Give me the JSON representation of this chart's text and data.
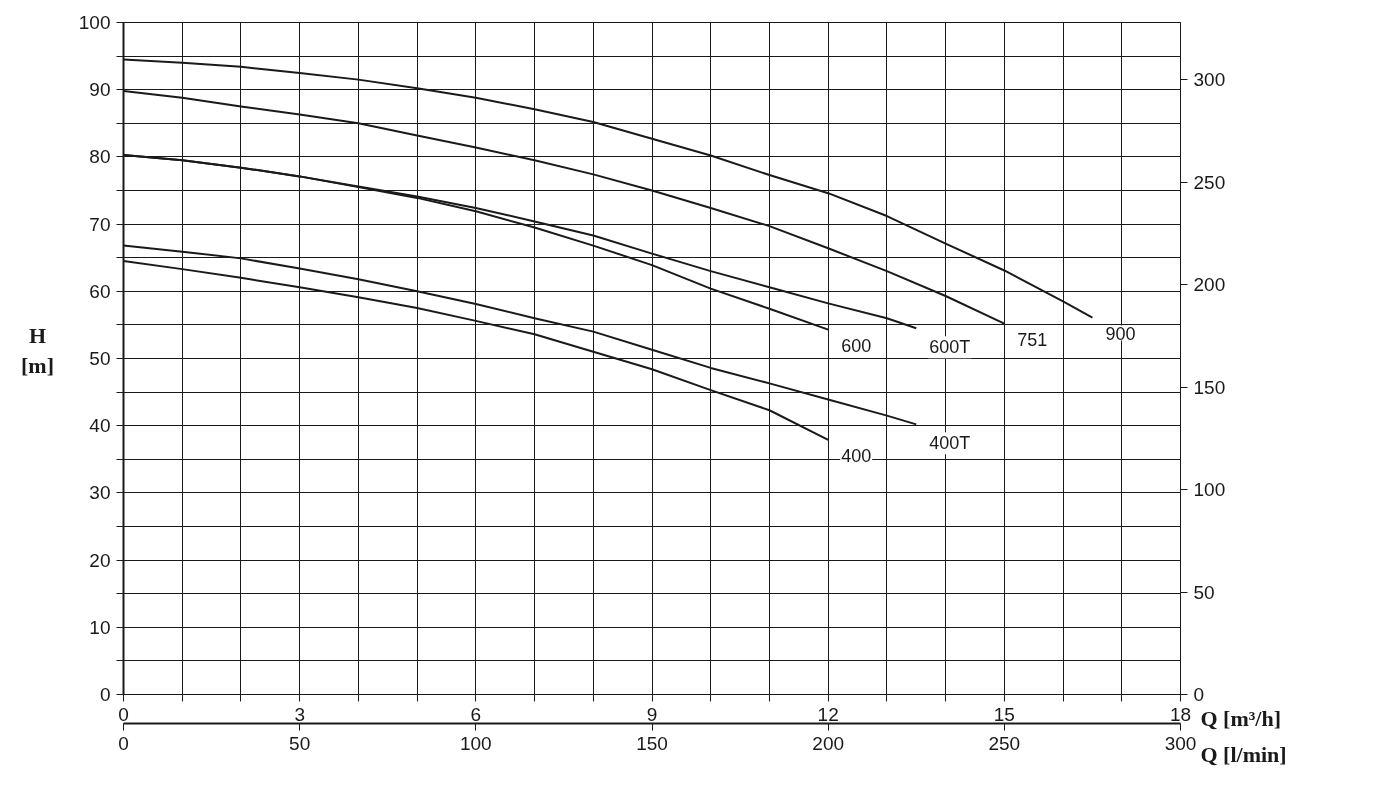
{
  "chart_data": {
    "type": "line",
    "xlabel": "Q [m³/h]",
    "ylabel": "H [m]",
    "x2label": "Q [l/min]",
    "xlim": [
      0,
      18
    ],
    "xticks": [
      0,
      {
        "value": 1,
        "label": null
      },
      {
        "value": 2,
        "label": null
      },
      3,
      {
        "value": 4,
        "label": null
      },
      {
        "value": 5,
        "label": null
      },
      6,
      {
        "value": 7,
        "label": null
      },
      {
        "value": 8,
        "label": null
      },
      9,
      {
        "value": 10,
        "label": null
      },
      {
        "value": 11,
        "label": null
      },
      12,
      {
        "value": 13,
        "label": null
      },
      {
        "value": 14,
        "label": null
      },
      15,
      {
        "value": 16,
        "label": null
      },
      {
        "value": 17,
        "label": null
      },
      18
    ],
    "ylim": [
      0,
      100
    ],
    "yticks": [
      0,
      {
        "value": 5,
        "label": null
      },
      10,
      {
        "value": 15,
        "label": null
      },
      20,
      {
        "value": 25,
        "label": null
      },
      30,
      {
        "value": 35,
        "label": null
      },
      40,
      {
        "value": 45,
        "label": null
      },
      50,
      {
        "value": 55,
        "label": null
      },
      60,
      {
        "value": 65,
        "label": null
      },
      70,
      {
        "value": 75,
        "label": null
      },
      80,
      {
        "value": 85,
        "label": null
      },
      90,
      {
        "value": 95,
        "label": null
      },
      100
    ],
    "x2lim": [
      0,
      300
    ],
    "x2ticks": [
      0,
      50,
      100,
      150,
      200,
      250,
      300
    ],
    "y2lim": [
      0,
      328
    ],
    "y2ticks": [
      0,
      50,
      100,
      150,
      200,
      250,
      300
    ],
    "grid": true,
    "line_style": "solid",
    "series": [
      {
        "name": "900",
        "color": "#1a1a1a",
        "x": [
          0,
          1,
          2,
          3,
          4,
          5,
          6,
          7,
          8,
          9,
          10,
          11,
          12,
          13,
          14,
          15,
          16,
          16.5
        ],
        "values": [
          94.5,
          94.0,
          93.4,
          92.5,
          91.5,
          90.2,
          88.8,
          87.1,
          85.2,
          82.7,
          80.2,
          77.3,
          74.6,
          71.2,
          67.1,
          63.1,
          58.5,
          56.1
        ]
      },
      {
        "name": "751",
        "color": "#1a1a1a",
        "x": [
          0,
          1,
          2,
          3,
          4,
          5,
          6,
          7,
          8,
          9,
          10,
          11,
          12,
          13,
          14,
          15
        ],
        "values": [
          89.8,
          88.8,
          87.5,
          86.3,
          85.0,
          83.2,
          81.4,
          79.5,
          77.4,
          75.0,
          72.4,
          69.7,
          66.4,
          63.0,
          59.3,
          55.2
        ]
      },
      {
        "name": "600T",
        "color": "#1a1a1a",
        "x": [
          0,
          1,
          2,
          3,
          4,
          5,
          6,
          7,
          8,
          9,
          10,
          11,
          12,
          13,
          13.5
        ],
        "values": [
          80.3,
          79.5,
          78.4,
          77.1,
          75.6,
          74.1,
          72.4,
          70.4,
          68.3,
          65.6,
          63.0,
          60.6,
          58.2,
          56.0,
          54.5
        ]
      },
      {
        "name": "600",
        "color": "#1a1a1a",
        "x": [
          0,
          1,
          2,
          3,
          4,
          5,
          6,
          7,
          8,
          9,
          10,
          11,
          12
        ],
        "values": [
          80.3,
          79.5,
          78.4,
          77.1,
          75.5,
          73.9,
          71.9,
          69.5,
          66.8,
          63.9,
          60.4,
          57.4,
          54.3
        ]
      },
      {
        "name": "400T",
        "color": "#1a1a1a",
        "x": [
          0,
          1,
          2,
          3,
          4,
          5,
          6,
          7,
          8,
          9,
          10,
          11,
          12,
          13,
          13.5
        ],
        "values": [
          66.8,
          65.9,
          64.9,
          63.4,
          61.8,
          60.0,
          58.1,
          56.0,
          54.0,
          51.3,
          48.6,
          46.3,
          43.9,
          41.5,
          40.2
        ]
      },
      {
        "name": "400",
        "color": "#1a1a1a",
        "x": [
          0,
          1,
          2,
          3,
          4,
          5,
          6,
          7,
          8,
          9,
          10,
          11,
          12
        ],
        "values": [
          64.5,
          63.3,
          62.0,
          60.6,
          59.1,
          57.5,
          55.6,
          53.6,
          51.0,
          48.4,
          45.3,
          42.3,
          37.9
        ]
      }
    ]
  }
}
